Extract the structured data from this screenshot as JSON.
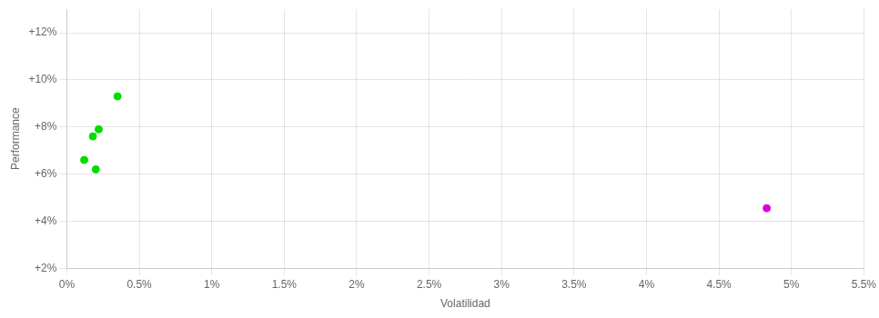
{
  "chart_data": {
    "type": "scatter",
    "xlabel": "Volatilidad",
    "ylabel": "Performance",
    "xlim": [
      0,
      0.055
    ],
    "ylim": [
      0.02,
      0.13
    ],
    "xticks": [
      {
        "value": 0.0,
        "label": "0%"
      },
      {
        "value": 0.005,
        "label": "0.5%"
      },
      {
        "value": 0.01,
        "label": "1%"
      },
      {
        "value": 0.015,
        "label": "1.5%"
      },
      {
        "value": 0.02,
        "label": "2%"
      },
      {
        "value": 0.025,
        "label": "2.5%"
      },
      {
        "value": 0.03,
        "label": "3%"
      },
      {
        "value": 0.035,
        "label": "3.5%"
      },
      {
        "value": 0.04,
        "label": "4%"
      },
      {
        "value": 0.045,
        "label": "4.5%"
      },
      {
        "value": 0.05,
        "label": "5%"
      },
      {
        "value": 0.055,
        "label": "5.5%"
      }
    ],
    "yticks": [
      {
        "value": 0.02,
        "label": "+2%"
      },
      {
        "value": 0.04,
        "label": "+4%"
      },
      {
        "value": 0.06,
        "label": "+6%"
      },
      {
        "value": 0.08,
        "label": "+8%"
      },
      {
        "value": 0.1,
        "label": "+10%"
      },
      {
        "value": 0.12,
        "label": "+12%"
      }
    ],
    "grid": true,
    "series": [
      {
        "color": "#00dd00",
        "x": [
          0.0035,
          0.0022,
          0.0018,
          0.0012,
          0.002
        ],
        "values": [
          0.093,
          0.079,
          0.076,
          0.066,
          0.062
        ]
      },
      {
        "color": "#dd00dd",
        "x": [
          0.0483
        ],
        "values": [
          0.0455
        ]
      }
    ]
  }
}
